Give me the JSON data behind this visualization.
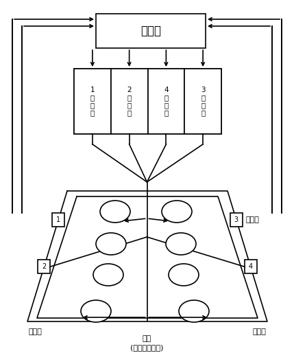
{
  "bg_color": "#ffffff",
  "line_color": "#000000",
  "fig_width": 4.29,
  "fig_height": 5.27,
  "controller_text": "控制器",
  "cell_labels": [
    "1\n整\n流\n器",
    "2\n整\n流\n器",
    "4\n整\n流\n器",
    "3\n整\n流\n器"
  ],
  "sensor_label": "传感器",
  "lamp_label": "灯管\n(相同使用时间)",
  "sample_rack_left": "样品架",
  "sample_rack_right": "样品架",
  "sensor_numbers": [
    "1",
    "2",
    "3",
    "4"
  ]
}
